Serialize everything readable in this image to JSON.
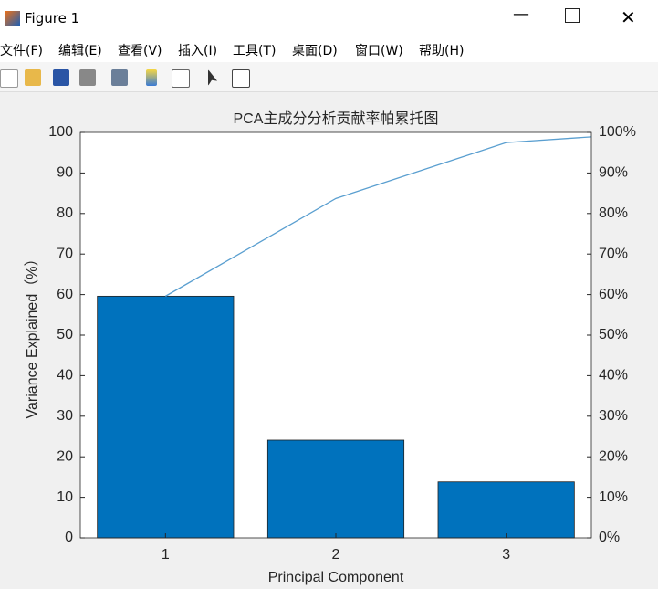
{
  "window": {
    "title": "Figure 1",
    "menu": [
      "文件(F)",
      "编辑(E)",
      "查看(V)",
      "插入(I)",
      "工具(T)",
      "桌面(D)",
      "窗口(W)",
      "帮助(H)"
    ]
  },
  "chart_data": {
    "type": "pareto",
    "title": "PCA主成分分析贡献率帕累托图",
    "x_label": "Principal Component",
    "y_label": "Variance Explained（%）",
    "x": [
      1,
      2,
      3
    ],
    "series": [
      {
        "type": "bar",
        "color": "#0072bd",
        "values": [
          59.6,
          24.1,
          13.8
        ]
      },
      {
        "type": "line",
        "color": "#5a9fd0",
        "axis": "y2",
        "x": [
          1,
          2,
          3,
          3.5
        ],
        "values": [
          59.6,
          83.7,
          97.5,
          98.9
        ]
      }
    ],
    "xlim": [
      0.5,
      3.5
    ],
    "xticks": [
      1,
      2,
      3
    ],
    "ylim": [
      0,
      100
    ],
    "yticks": [
      0,
      10,
      20,
      30,
      40,
      50,
      60,
      70,
      80,
      90,
      100
    ],
    "y2lim": [
      0,
      100
    ],
    "y2ticks": [
      {
        "value": 0,
        "label": "0%"
      },
      {
        "value": 10,
        "label": "10%"
      },
      {
        "value": 20,
        "label": "20%"
      },
      {
        "value": 30,
        "label": "30%"
      },
      {
        "value": 40,
        "label": "40%"
      },
      {
        "value": 50,
        "label": "50%"
      },
      {
        "value": 60,
        "label": "60%"
      },
      {
        "value": 70,
        "label": "70%"
      },
      {
        "value": 80,
        "label": "80%"
      },
      {
        "value": 90,
        "label": "90%"
      },
      {
        "value": 100,
        "label": "100%"
      }
    ]
  }
}
